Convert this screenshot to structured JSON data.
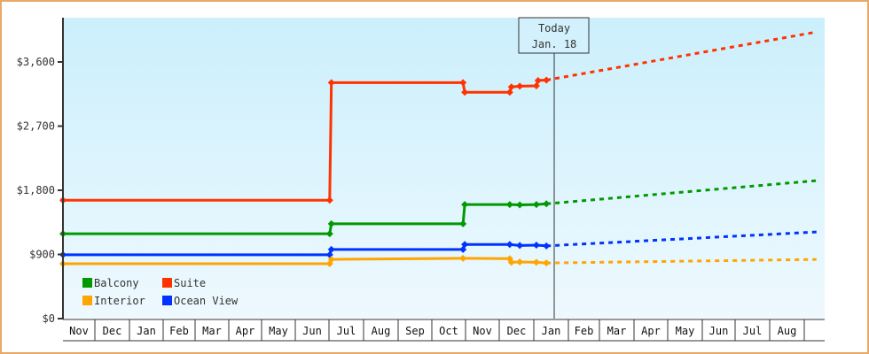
{
  "chart_data": {
    "type": "line",
    "title": "",
    "xlabel": "",
    "ylabel": "",
    "ylim": [
      0,
      4200
    ],
    "grid": false,
    "legend_position": "bottom-left inside plot",
    "y_ticks": [
      "$0",
      "$900",
      "$1,800",
      "$2,700",
      "$3,600"
    ],
    "y_tick_values": [
      0,
      900,
      1800,
      2700,
      3600
    ],
    "x_tick_labels": [
      "Nov",
      "Dec",
      "Jan",
      "Feb",
      "Mar",
      "Apr",
      "May",
      "Jun",
      "Jul",
      "Aug",
      "Sep",
      "Oct",
      "Nov",
      "Dec",
      "Jan",
      "Feb",
      "Mar",
      "Apr",
      "May",
      "Jun",
      "Jul",
      "Aug"
    ],
    "annotation": {
      "line1": "Today",
      "line2": "Jan. 18",
      "position_month_index": 14.5
    },
    "series": [
      {
        "name": "Suite",
        "color": "#ff3300",
        "history": [
          {
            "x": 0.0,
            "y": 1660
          },
          {
            "x": 8.0,
            "y": 1660
          },
          {
            "x": 8.05,
            "y": 3310
          },
          {
            "x": 12.0,
            "y": 3310
          },
          {
            "x": 12.05,
            "y": 3175
          },
          {
            "x": 13.4,
            "y": 3175
          },
          {
            "x": 13.45,
            "y": 3250
          },
          {
            "x": 13.7,
            "y": 3260
          },
          {
            "x": 14.2,
            "y": 3265
          },
          {
            "x": 14.25,
            "y": 3340
          },
          {
            "x": 14.5,
            "y": 3345
          }
        ],
        "forecast": [
          {
            "x": 14.5,
            "y": 3345
          },
          {
            "x": 22.6,
            "y": 4020
          }
        ]
      },
      {
        "name": "Balcony",
        "color": "#009900",
        "history": [
          {
            "x": 0.0,
            "y": 1190
          },
          {
            "x": 8.0,
            "y": 1190
          },
          {
            "x": 8.05,
            "y": 1330
          },
          {
            "x": 12.0,
            "y": 1330
          },
          {
            "x": 12.05,
            "y": 1600
          },
          {
            "x": 13.4,
            "y": 1600
          },
          {
            "x": 13.7,
            "y": 1595
          },
          {
            "x": 14.2,
            "y": 1600
          },
          {
            "x": 14.5,
            "y": 1610
          }
        ],
        "forecast": [
          {
            "x": 14.5,
            "y": 1610
          },
          {
            "x": 22.6,
            "y": 1935
          }
        ]
      },
      {
        "name": "Ocean View",
        "color": "#0033ff",
        "history": [
          {
            "x": 0.0,
            "y": 895
          },
          {
            "x": 8.0,
            "y": 895
          },
          {
            "x": 8.05,
            "y": 970
          },
          {
            "x": 12.0,
            "y": 970
          },
          {
            "x": 12.05,
            "y": 1040
          },
          {
            "x": 13.4,
            "y": 1040
          },
          {
            "x": 13.7,
            "y": 1025
          },
          {
            "x": 14.2,
            "y": 1030
          },
          {
            "x": 14.5,
            "y": 1020
          }
        ],
        "forecast": [
          {
            "x": 14.5,
            "y": 1020
          },
          {
            "x": 22.6,
            "y": 1215
          }
        ]
      },
      {
        "name": "Interior",
        "color": "#ffa500",
        "history": [
          {
            "x": 0.0,
            "y": 770
          },
          {
            "x": 8.0,
            "y": 770
          },
          {
            "x": 8.05,
            "y": 830
          },
          {
            "x": 12.0,
            "y": 845
          },
          {
            "x": 13.4,
            "y": 840
          },
          {
            "x": 13.45,
            "y": 790
          },
          {
            "x": 13.7,
            "y": 795
          },
          {
            "x": 14.2,
            "y": 790
          },
          {
            "x": 14.5,
            "y": 780
          }
        ],
        "forecast": [
          {
            "x": 14.5,
            "y": 780
          },
          {
            "x": 22.6,
            "y": 830
          }
        ]
      }
    ]
  },
  "legend": {
    "items": [
      {
        "label": "Balcony",
        "color": "#009900"
      },
      {
        "label": "Suite",
        "color": "#ff3300"
      },
      {
        "label": "Interior",
        "color": "#ffa500"
      },
      {
        "label": "Ocean View",
        "color": "#0033ff"
      }
    ]
  },
  "today": {
    "line1": "Today",
    "line2": "Jan. 18"
  },
  "colors": {
    "frame_border": "#e8a866",
    "plot_bg_top": "#cbeffc",
    "plot_bg_bottom": "#eef9fe",
    "axis": "#333333"
  }
}
